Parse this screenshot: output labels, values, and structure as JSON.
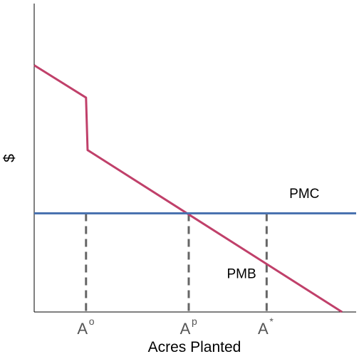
{
  "chart_data": {
    "type": "line",
    "xlabel": "Acres Planted",
    "ylabel": "$",
    "xlim": [
      0,
      100
    ],
    "ylim": [
      0,
      100
    ],
    "grid": false,
    "series": [
      {
        "name": "PMB",
        "color": "#c0406a",
        "x": [
          0,
          16.5,
          17,
          98
        ],
        "y": [
          80,
          69.5,
          52.5,
          0
        ]
      },
      {
        "name": "PMC",
        "color": "#4a72b0",
        "x": [
          0,
          103
        ],
        "y": [
          32,
          32
        ]
      }
    ],
    "vlines": [
      {
        "x": 16.5,
        "y": 32,
        "label": "A",
        "sup": "o"
      },
      {
        "x": 49.2,
        "y": 32,
        "label": "A",
        "sup": "p"
      },
      {
        "x": 74,
        "y": 32,
        "label": "A",
        "sup": "*"
      }
    ],
    "vline_color": "#666666",
    "annotations": [
      {
        "text": "PMC",
        "x": 86,
        "y": 37
      },
      {
        "text": "PMB",
        "x": 66,
        "y": 11
      }
    ]
  }
}
